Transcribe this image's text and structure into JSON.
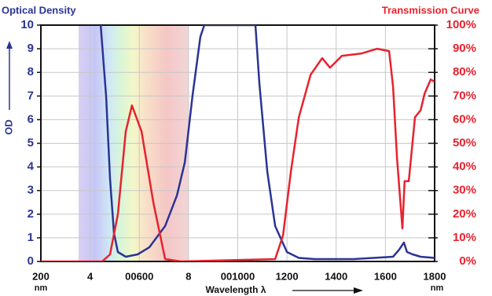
{
  "chart_data": {
    "type": "line",
    "title_left": "Optical Density",
    "title_right": "Transmission Curve",
    "y_label": "OD",
    "x_label": "Wavelength λ",
    "x_unit": "nm",
    "xlim": [
      200,
      1800
    ],
    "xticks": [
      {
        "value": 200,
        "label": "200"
      },
      {
        "value": 400,
        "label": "4"
      },
      {
        "value": 600,
        "label": "00600"
      },
      {
        "value": 800,
        "label": "8"
      },
      {
        "value": 1000,
        "label": "001000"
      },
      1200,
      1400,
      1600,
      {
        "value": 1800,
        "label": "1800"
      }
    ],
    "ylim": [
      0,
      10
    ],
    "yticks": [
      0,
      1,
      2,
      3,
      4,
      5,
      6,
      7,
      8,
      9,
      10
    ],
    "y2lim": [
      0,
      100
    ],
    "y2ticks": [
      {
        "value": 0,
        "label": "0%"
      },
      {
        "value": 10,
        "label": "10%"
      },
      {
        "value": 20,
        "label": "20%"
      },
      {
        "value": 30,
        "label": "30%"
      },
      {
        "value": 40,
        "label": "40%"
      },
      {
        "value": 50,
        "label": "50%"
      },
      {
        "value": 60,
        "label": "60%"
      },
      {
        "value": 70,
        "label": "70%"
      },
      {
        "value": 80,
        "label": "80%"
      },
      {
        "value": 90,
        "label": "90%"
      },
      {
        "value": 100,
        "label": "100%"
      }
    ],
    "grid": true,
    "series": [
      {
        "name": "Optical Density",
        "color": "#2b3494",
        "axis": "y",
        "x": [
          443,
          465,
          481,
          497,
          513,
          545,
          593,
          641,
          705,
          753,
          785,
          816,
          848,
          864,
          1072,
          1088,
          1120,
          1152,
          1200,
          1248,
          1312,
          1471,
          1631,
          1656,
          1675,
          1688,
          1711,
          1743,
          1800
        ],
        "values": [
          10,
          7,
          3.5,
          1.2,
          0.4,
          0.2,
          0.3,
          0.6,
          1.5,
          2.8,
          4.2,
          7,
          9.5,
          10,
          10,
          7.5,
          3.8,
          1.5,
          0.4,
          0.15,
          0.1,
          0.1,
          0.2,
          0.5,
          0.8,
          0.4,
          0.3,
          0.2,
          0.15
        ]
      },
      {
        "name": "Transmission Curve",
        "color": "#e8222e",
        "axis": "y2",
        "x": [
          200,
          449,
          481,
          513,
          545,
          570,
          609,
          657,
          705,
          769,
          1152,
          1184,
          1216,
          1248,
          1296,
          1343,
          1375,
          1423,
          1503,
          1567,
          1615,
          1631,
          1647,
          1669,
          1678,
          1695,
          1720,
          1743,
          1759,
          1784,
          1800
        ],
        "values": [
          0,
          0,
          3,
          20,
          55,
          66,
          55,
          25,
          1,
          0,
          1,
          11,
          38,
          61,
          79,
          86,
          82,
          87,
          88,
          90,
          89,
          74,
          44,
          14,
          34,
          34,
          61,
          64,
          71,
          77,
          76
        ]
      }
    ]
  }
}
